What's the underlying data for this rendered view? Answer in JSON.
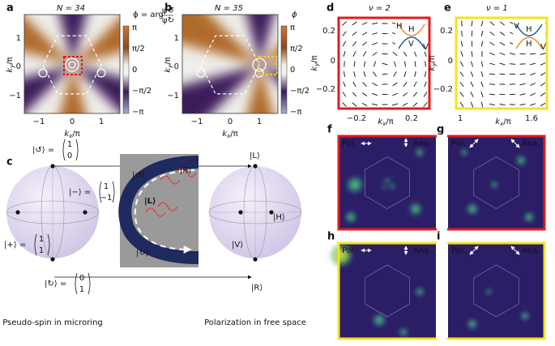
{
  "a": {
    "label": "a",
    "title": "N = 34",
    "phi": "ϕ = arg",
    "num": "ψ↺",
    "den": "ψ↻",
    "cbar": [
      "π",
      "π/2",
      "0",
      "−π/2",
      "−π"
    ],
    "xticks": [
      "−1",
      "0",
      "1"
    ],
    "yticks": [
      "1",
      "0",
      "−1"
    ],
    "xlabel": [
      "k",
      "x",
      "/π"
    ],
    "ylabel": [
      "k",
      "y",
      "/π"
    ]
  },
  "b": {
    "label": "b",
    "title": "N = 35",
    "phi": "ϕ",
    "cbar": [
      "π",
      "π/2",
      "0",
      "−π/2",
      "−π"
    ],
    "xticks": [
      "−1",
      "0",
      "1"
    ],
    "yticks": [
      "1",
      "0",
      "−1"
    ],
    "xlabel": [
      "k",
      "x",
      "/π"
    ],
    "ylabel": [
      "k",
      "y",
      "/π"
    ]
  },
  "c": {
    "label": "c",
    "kets": [
      {
        "ket": "|↺⟩ =",
        "vec": [
          "1",
          "0"
        ]
      },
      {
        "ket": "|−⟩ =",
        "vec": [
          "1",
          "−1"
        ]
      },
      {
        "ket": "|+⟩ =",
        "vec": [
          "1",
          "1"
        ]
      },
      {
        "ket": "|↻⟩ =",
        "vec": [
          "0",
          "1"
        ]
      }
    ],
    "pol": [
      "|L⟩",
      "|H⟩",
      "|V⟩",
      "|R⟩"
    ],
    "inset": [
      "|↺⟩",
      "|R⟩",
      "|L⟩",
      "|↻⟩"
    ],
    "captions": [
      "Pseudo-spin in microring",
      "Polarization in free space"
    ]
  },
  "d": {
    "label": "d",
    "title": "ν = 2",
    "yticks": [
      "0.2",
      "0",
      "−0.2"
    ],
    "xticks": [
      "−0.2",
      "0.2"
    ],
    "xlabel": [
      "k",
      "x",
      "/π"
    ],
    "ylabel": [
      "k",
      "y",
      "/π"
    ],
    "bands": [
      "H",
      "H",
      "V",
      "V"
    ]
  },
  "e": {
    "label": "e",
    "title": "ν = 1",
    "yticks": [
      "0.2",
      "0",
      "−0.2"
    ],
    "xticks": [
      "1",
      "1.6"
    ],
    "xlabel": [
      "k",
      "x",
      "/π"
    ],
    "ylabel": [
      "k",
      "y",
      "/π"
    ],
    "bands": [
      "V",
      "H",
      "H",
      "V"
    ]
  },
  "f": {
    "label": "f",
    "pol": "Pol.",
    "ana": "Ana."
  },
  "g": {
    "label": "g",
    "pol": "Pol.",
    "ana": "Ana."
  },
  "h": {
    "label": "h",
    "pol": "Pol.",
    "ana": "Ana."
  },
  "i": {
    "label": "i",
    "pol": "Pol.",
    "ana": "Ana."
  }
}
